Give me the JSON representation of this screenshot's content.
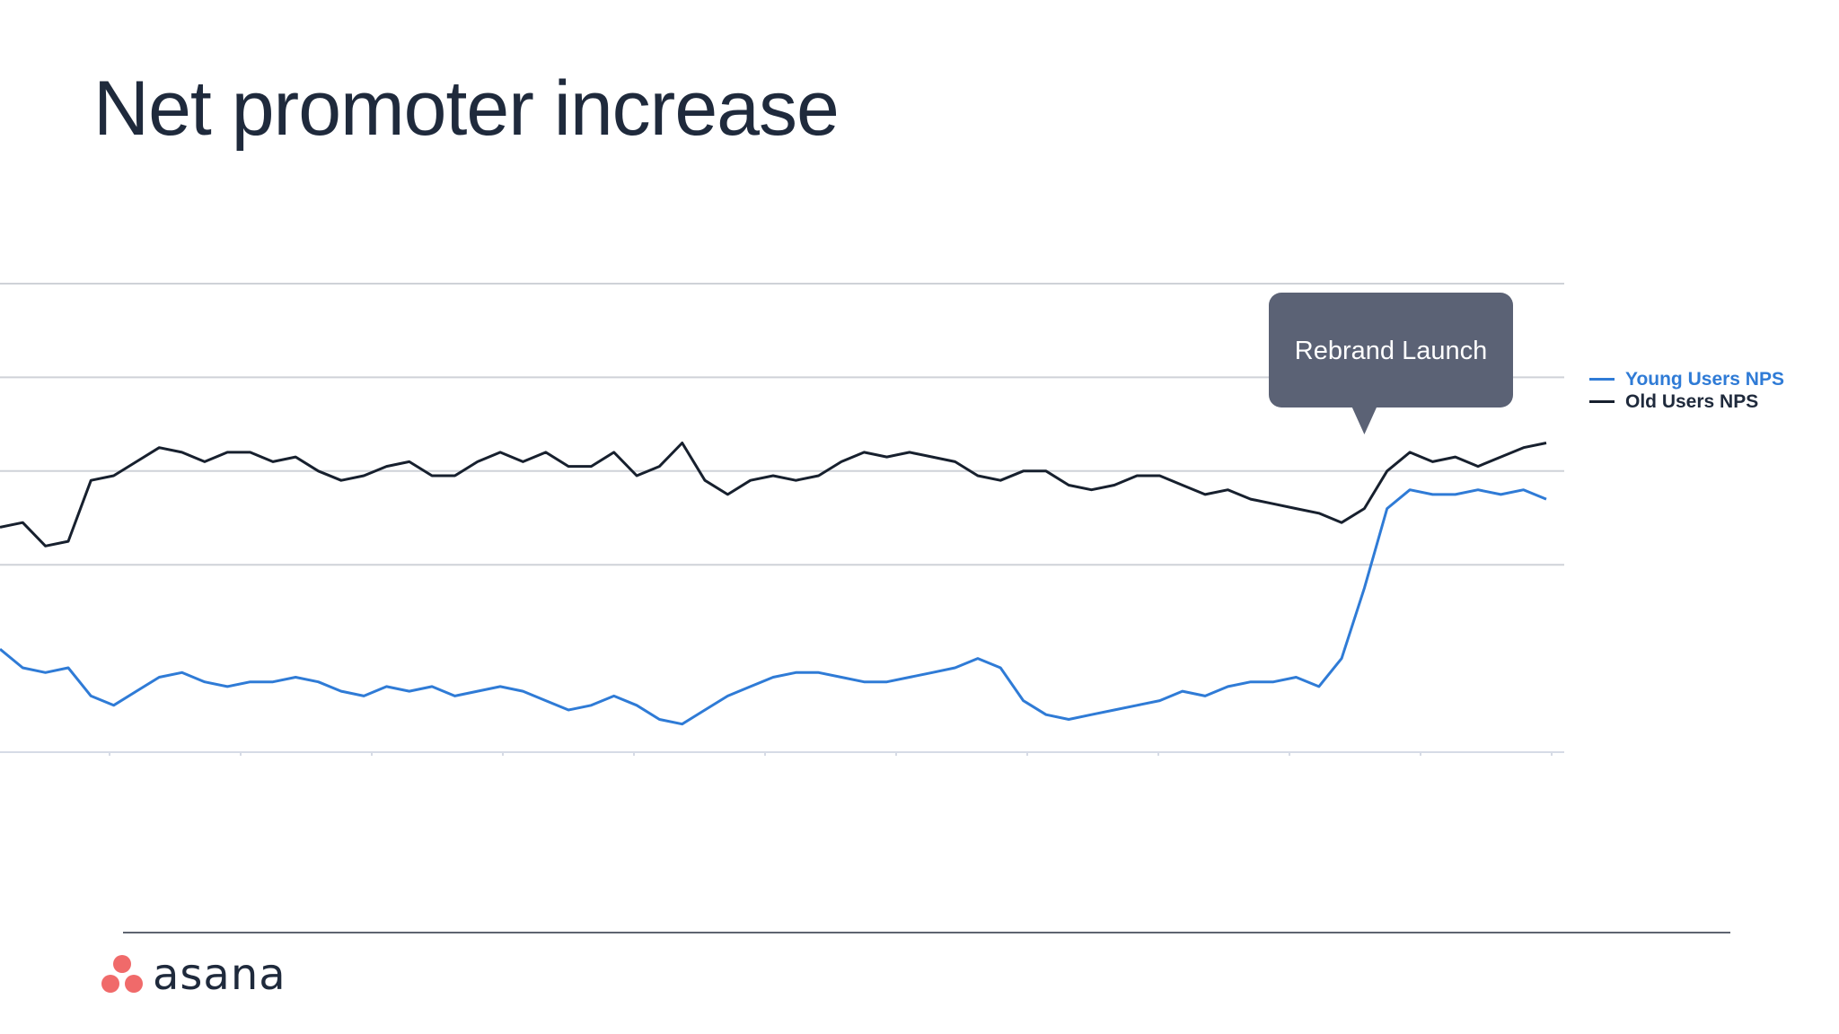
{
  "slide": {
    "title": "Net promoter increase"
  },
  "brand": {
    "name": "asana",
    "logo_icon": "asana-three-dots-icon",
    "logo_color": "#f06a6a",
    "text_color": "#1f2a3c"
  },
  "chart_data": {
    "type": "line",
    "title": "",
    "xlabel": "",
    "ylabel": "",
    "ylim": [
      0,
      100
    ],
    "grid": true,
    "legend_placement": "right",
    "series": [
      {
        "name": "Young Users NPS",
        "color": "#2f7bd6",
        "values": [
          22,
          18,
          17,
          18,
          12,
          10,
          13,
          16,
          17,
          15,
          14,
          15,
          15,
          16,
          15,
          13,
          12,
          14,
          13,
          14,
          12,
          13,
          14,
          13,
          11,
          9,
          10,
          12,
          10,
          7,
          6,
          9,
          12,
          14,
          16,
          17,
          17,
          16,
          15,
          15,
          16,
          17,
          18,
          20,
          18,
          11,
          8,
          7,
          8,
          9,
          10,
          11,
          13,
          12,
          14,
          15,
          15,
          16,
          14,
          20,
          35,
          52,
          56,
          55,
          55,
          56,
          55,
          56,
          54
        ]
      },
      {
        "name": "Old Users NPS",
        "color": "#17202e",
        "values": [
          48,
          49,
          44,
          45,
          58,
          59,
          62,
          65,
          64,
          62,
          64,
          64,
          62,
          63,
          60,
          58,
          59,
          61,
          62,
          59,
          59,
          62,
          64,
          62,
          64,
          61,
          61,
          64,
          59,
          61,
          66,
          58,
          55,
          58,
          59,
          58,
          59,
          62,
          64,
          63,
          64,
          63,
          62,
          59,
          58,
          60,
          60,
          57,
          56,
          57,
          59,
          59,
          57,
          55,
          56,
          54,
          53,
          52,
          51,
          49,
          52,
          60,
          64,
          62,
          63,
          61,
          63,
          65,
          66
        ]
      }
    ],
    "annotation": {
      "text": "Rebrand Launch",
      "x_index": 60,
      "bg_color": "#5b6275"
    }
  }
}
